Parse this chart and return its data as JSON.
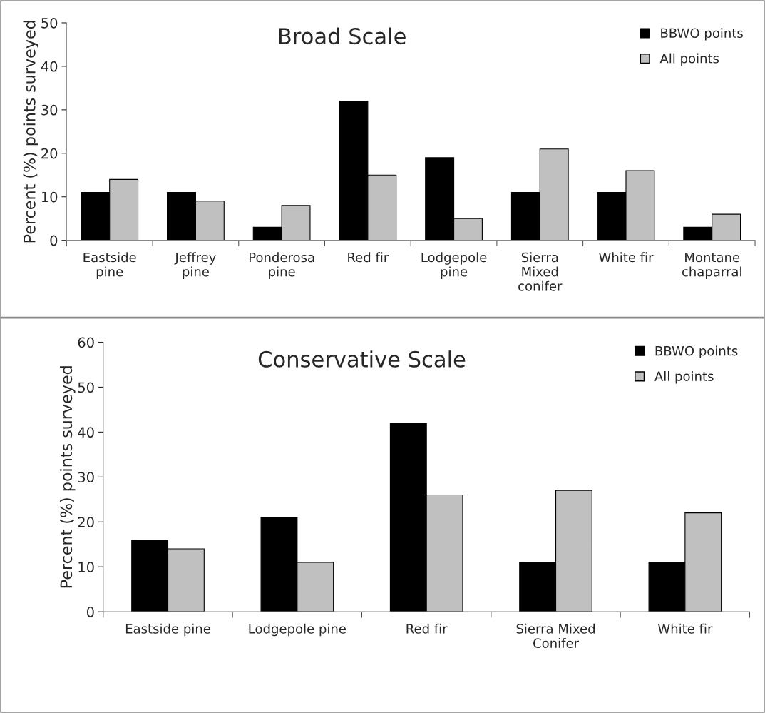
{
  "chart_data": [
    {
      "type": "bar",
      "title": "Broad Scale",
      "ylabel": "Percent (%) points surveyed",
      "categories": [
        "Eastside\npine",
        "Jeffrey\npine",
        "Ponderosa\npine",
        "Red fir",
        "Lodgepole\npine",
        "Sierra\nMixed\nconifer",
        "White fir",
        "Montane\nchaparral"
      ],
      "series": [
        {
          "name": "BBWO points",
          "color": "#000000",
          "values": [
            11,
            11,
            3,
            32,
            19,
            11,
            11,
            3
          ]
        },
        {
          "name": "All points",
          "color": "#c0c0c0",
          "values": [
            14,
            9,
            8,
            15,
            5,
            21,
            16,
            6
          ]
        }
      ],
      "ylim": [
        0,
        50
      ],
      "yticks": [
        0,
        10,
        20,
        30,
        40,
        50
      ],
      "grid": false,
      "legend": "top right"
    },
    {
      "type": "bar",
      "title": "Conservative Scale",
      "ylabel": "Percent (%) points surveyed",
      "categories": [
        "Eastside pine",
        "Lodgepole pine",
        "Red fir",
        "Sierra Mixed\nConifer",
        "White fir"
      ],
      "series": [
        {
          "name": "BBWO points",
          "color": "#000000",
          "values": [
            16,
            21,
            42,
            11,
            11
          ]
        },
        {
          "name": "All points",
          "color": "#c0c0c0",
          "values": [
            14,
            11,
            26,
            27,
            22
          ]
        }
      ],
      "ylim": [
        0,
        60
      ],
      "yticks": [
        0,
        10,
        20,
        30,
        40,
        50,
        60
      ],
      "grid": false,
      "legend": "top right"
    }
  ]
}
